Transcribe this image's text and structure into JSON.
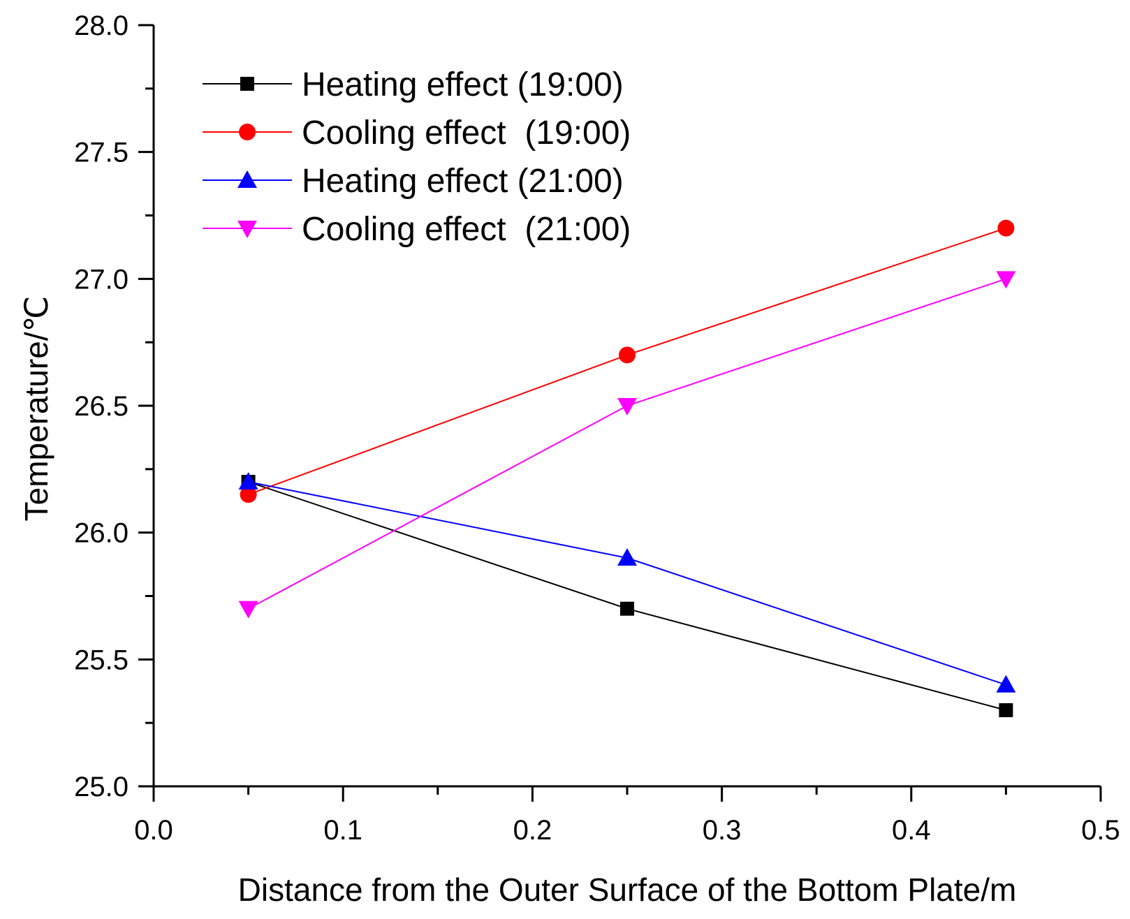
{
  "chart_data": {
    "type": "line",
    "title": "",
    "xlabel": "Distance from the Outer Surface of the Bottom Plate/m",
    "ylabel": "Temperature/℃",
    "xlim": [
      0.0,
      0.5
    ],
    "ylim": [
      25.0,
      28.0
    ],
    "x_ticks": [
      "0.0",
      "0.1",
      "0.2",
      "0.3",
      "0.4",
      "0.5"
    ],
    "y_ticks": [
      "25.0",
      "25.5",
      "26.0",
      "26.5",
      "27.0",
      "27.5",
      "28.0"
    ],
    "grid": false,
    "legend_position": "top-left",
    "x": [
      0.05,
      0.25,
      0.45
    ],
    "series": [
      {
        "name": "Heating effect (19:00)",
        "color": "#000000",
        "marker": "square",
        "values": [
          26.2,
          25.7,
          25.3
        ]
      },
      {
        "name": "Cooling effect  (19:00)",
        "color": "#ff0000",
        "marker": "circle",
        "values": [
          26.15,
          26.7,
          27.2
        ]
      },
      {
        "name": "Heating effect (21:00)",
        "color": "#0000ff",
        "marker": "triangle-up",
        "values": [
          26.2,
          25.9,
          25.4
        ]
      },
      {
        "name": "Cooling effect  (21:00)",
        "color": "#ff00ff",
        "marker": "triangle-down",
        "values": [
          25.7,
          26.5,
          27.0
        ]
      }
    ]
  }
}
